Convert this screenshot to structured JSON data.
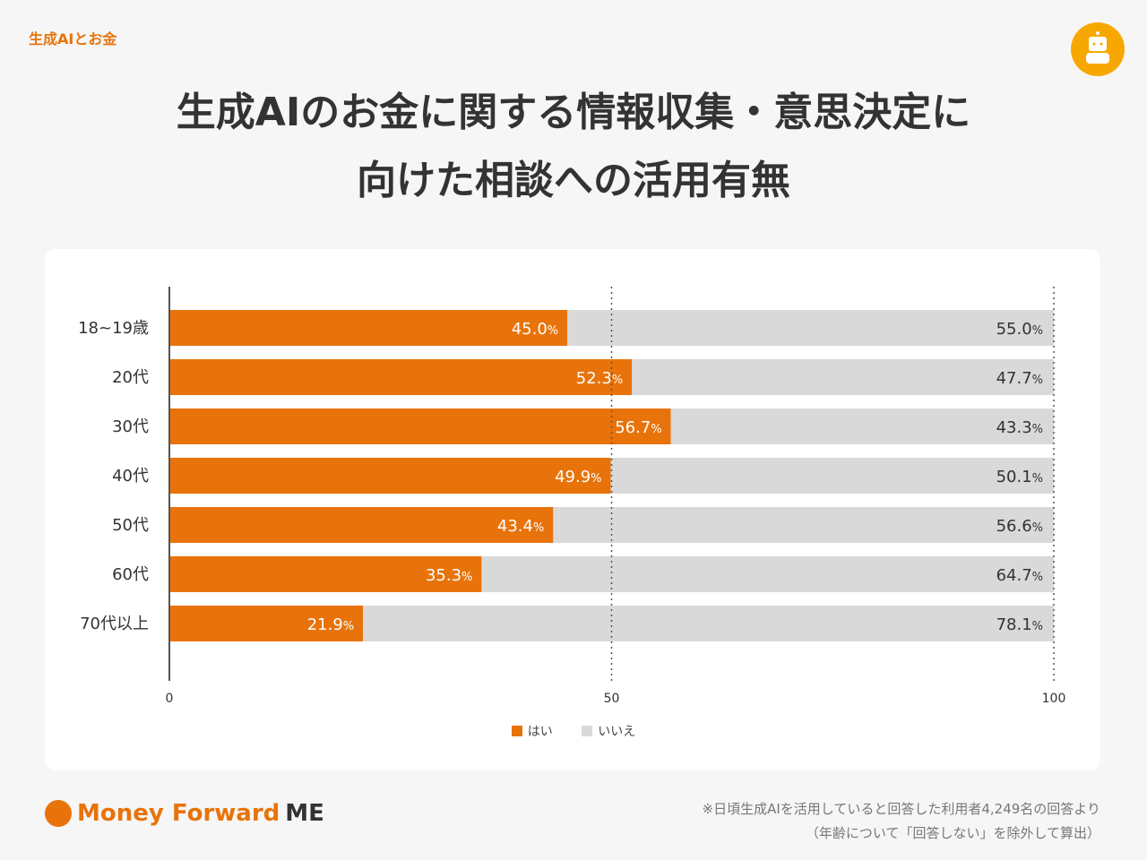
{
  "header": {
    "series_label": "生成AIとお金",
    "title_line1": "生成AIのお金に関する情報収集・意思決定に",
    "title_line2": "向けた相談への活用有無"
  },
  "chart_data": {
    "type": "bar",
    "orientation": "horizontal",
    "stacked": true,
    "categories": [
      "18~19歳",
      "20代",
      "30代",
      "40代",
      "50代",
      "60代",
      "70代以上"
    ],
    "series": [
      {
        "name": "はい",
        "color": "#e8730a",
        "values": [
          45.0,
          52.3,
          56.7,
          49.9,
          43.4,
          35.3,
          21.9
        ]
      },
      {
        "name": "いいえ",
        "color": "#d9d9d9",
        "values": [
          55.0,
          47.7,
          43.3,
          50.1,
          56.6,
          64.7,
          78.1
        ]
      }
    ],
    "xlim": [
      0,
      100
    ],
    "xticks": [
      "0",
      "50",
      "100"
    ],
    "value_suffix": "%",
    "legend": "bottom",
    "grid": "dotted at 50 and 100"
  },
  "footer": {
    "brand": "Money Forward",
    "brand_suffix": "ME",
    "note_line1": "※日頃生成AIを活用していると回答した利用者4,249名の回答より",
    "note_line2": "（年齢について「回答しない」を除外して算出）"
  }
}
